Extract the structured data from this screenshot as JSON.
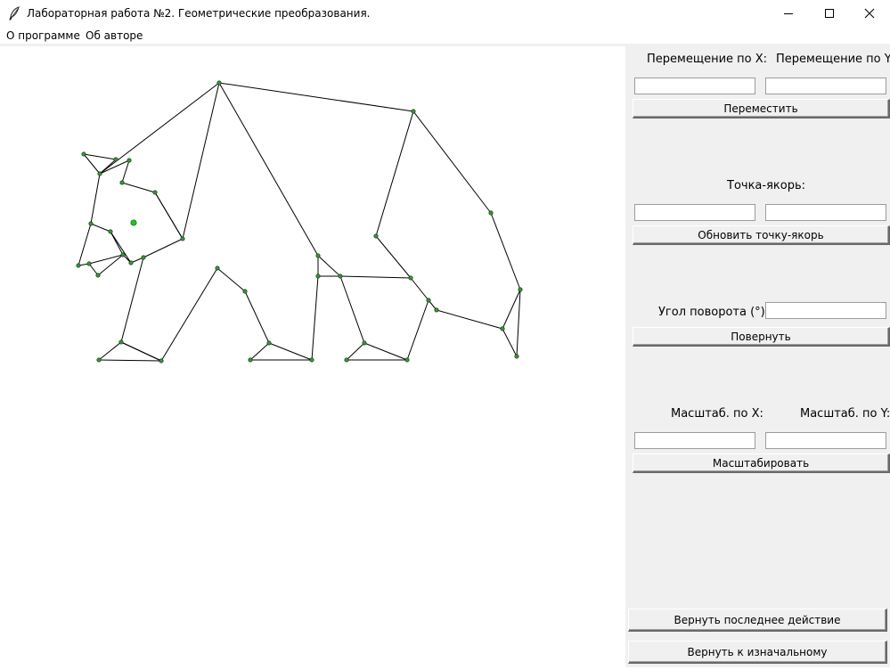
{
  "window": {
    "title": "Лабораторная работа №2. Геометрические преобразования.",
    "icon": "feather-icon"
  },
  "menu": {
    "items": [
      "О программе",
      "Об авторе"
    ]
  },
  "panel": {
    "move": {
      "label_x": "Перемещение по X:",
      "label_y": "Перемещение по Y:",
      "value_x": "",
      "value_y": "",
      "button": "Переместить"
    },
    "anchor": {
      "label": "Точка-якорь:",
      "value_x": "",
      "value_y": "",
      "button": "Обновить точку-якорь"
    },
    "rotate": {
      "label": "Угол поворота (°):",
      "value": "",
      "button": "Повернуть"
    },
    "scale": {
      "label_x": "Масштаб. по X:",
      "label_y": "Масштаб. по Y:",
      "value_x": "",
      "value_y": "",
      "button": "Масштабировать"
    },
    "undo_button": "Вернуть последнее действие",
    "reset_button": "Вернуть к изначальному"
  },
  "colors": {
    "vertex": "#2e9d2e",
    "anchor": "#22c322",
    "line": "#000000",
    "panel_bg": "#f0f0f0"
  }
}
